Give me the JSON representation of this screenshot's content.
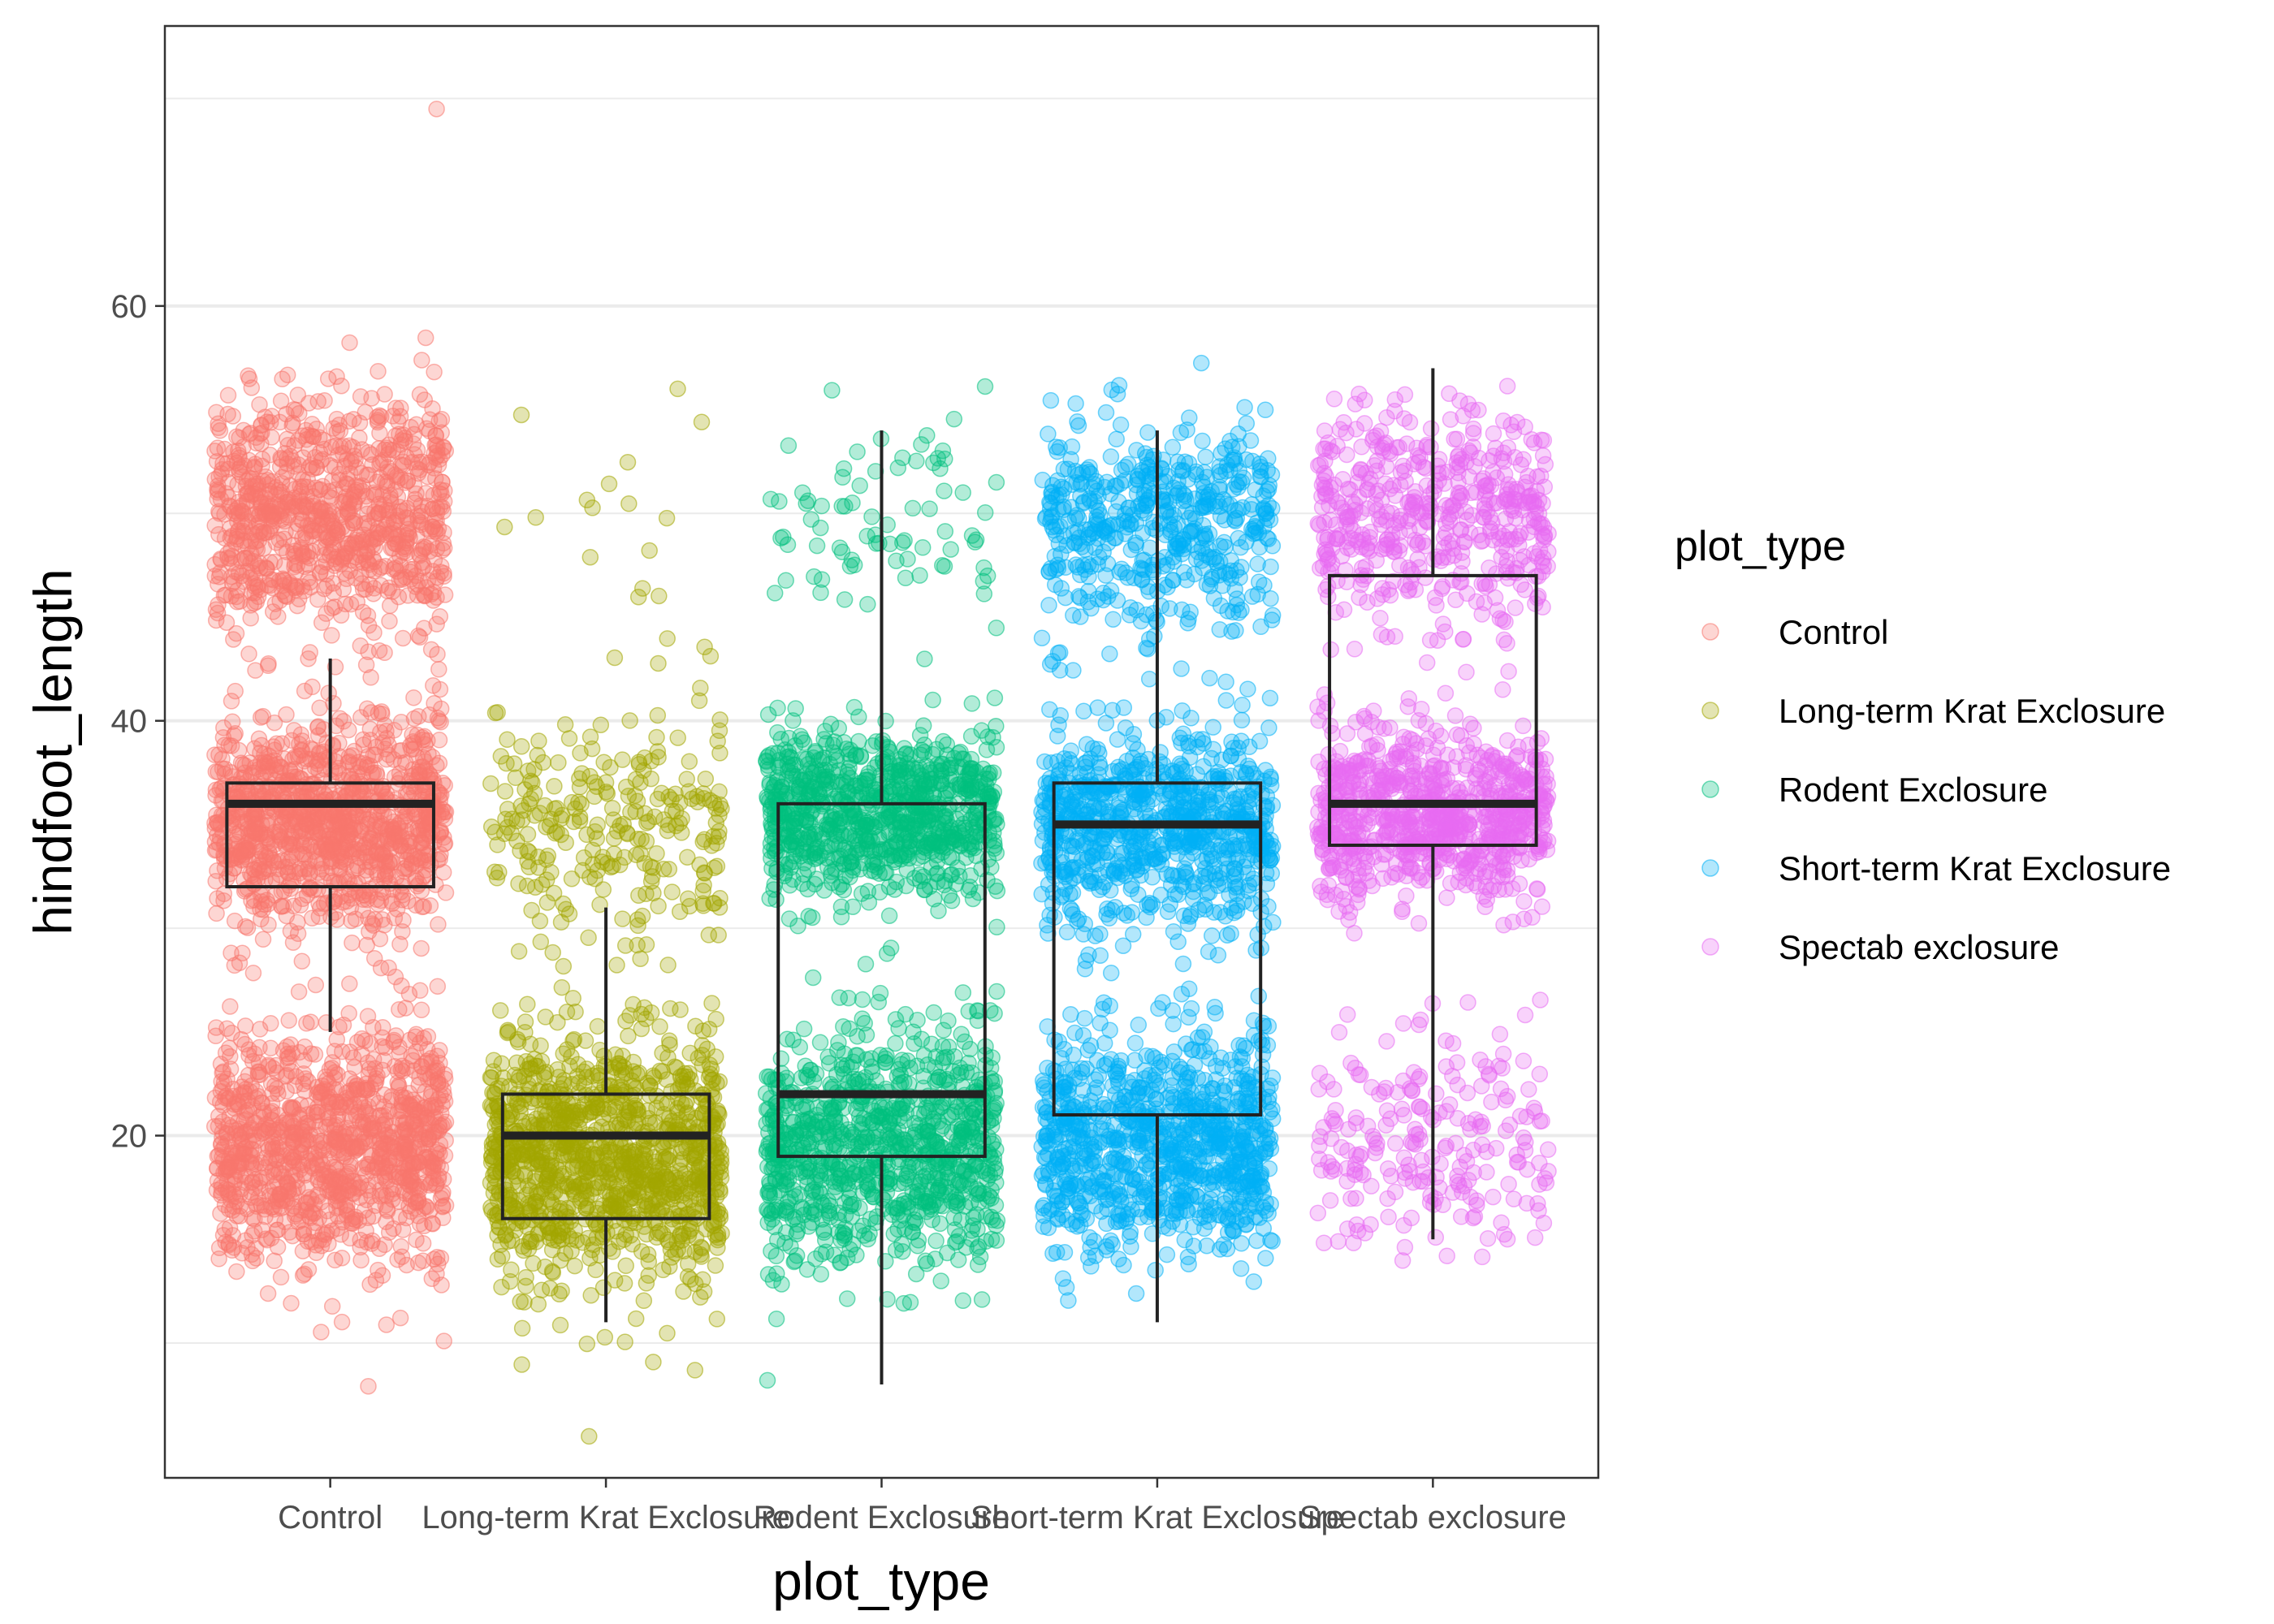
{
  "chart_data": {
    "type": "boxplot-jitter",
    "xlabel": "plot_type",
    "ylabel": "hindfoot_length",
    "ylim": [
      3.5,
      73.5
    ],
    "yticks": [
      20,
      40,
      60
    ],
    "ytick_labels": [
      "20",
      "40",
      "60"
    ],
    "categories": [
      "Control",
      "Long-term Krat Exclosure",
      "Rodent Exclosure",
      "Short-term Krat Exclosure",
      "Spectab exclosure"
    ],
    "colors": [
      "#F8766D",
      "#A3A500",
      "#00BF7D",
      "#00B0F6",
      "#E76BF3"
    ],
    "grid": true,
    "legend": {
      "title": "plot_type",
      "placement": "right",
      "entries": [
        "Control",
        "Long-term Krat Exclosure",
        "Rodent Exclosure",
        "Short-term Krat Exclosure",
        "Spectab exclosure"
      ]
    },
    "boxes": [
      {
        "category": "Control",
        "min": 25,
        "q1": 32,
        "median": 36,
        "q3": 37,
        "max": 43
      },
      {
        "category": "Long-term Krat Exclosure",
        "min": 11,
        "q1": 16,
        "median": 20,
        "q3": 22,
        "max": 31
      },
      {
        "category": "Rodent Exclosure",
        "min": 8,
        "q1": 19,
        "median": 22,
        "q3": 36,
        "max": 54
      },
      {
        "category": "Short-term Krat Exclosure",
        "min": 11,
        "q1": 21,
        "median": 35,
        "q3": 37,
        "max": 54
      },
      {
        "category": "Spectab exclosure",
        "min": 15,
        "q1": 34,
        "median": 36,
        "q3": 47,
        "max": 57
      }
    ],
    "clusters": [
      {
        "category": "Control",
        "center": 50,
        "spread": 2.8,
        "count": 900
      },
      {
        "category": "Control",
        "center": 35,
        "spread": 2.5,
        "count": 1100
      },
      {
        "category": "Control",
        "center": 19.5,
        "spread": 2.8,
        "count": 1100
      },
      {
        "category": "Long-term Krat Exclosure",
        "center": 50,
        "spread": 3,
        "count": 18
      },
      {
        "category": "Long-term Krat Exclosure",
        "center": 34.5,
        "spread": 3,
        "count": 260
      },
      {
        "category": "Long-term Krat Exclosure",
        "center": 19,
        "spread": 3,
        "count": 1100
      },
      {
        "category": "Rodent Exclosure",
        "center": 50,
        "spread": 2.5,
        "count": 80
      },
      {
        "category": "Rodent Exclosure",
        "center": 35.5,
        "spread": 2,
        "count": 850
      },
      {
        "category": "Rodent Exclosure",
        "center": 19.5,
        "spread": 2.8,
        "count": 900
      },
      {
        "category": "Short-term Krat Exclosure",
        "center": 49.5,
        "spread": 2.6,
        "count": 500
      },
      {
        "category": "Short-term Krat Exclosure",
        "center": 35,
        "spread": 2.4,
        "count": 800
      },
      {
        "category": "Short-term Krat Exclosure",
        "center": 19.5,
        "spread": 2.8,
        "count": 900
      },
      {
        "category": "Spectab exclosure",
        "center": 50,
        "spread": 2.6,
        "count": 500
      },
      {
        "category": "Spectab exclosure",
        "center": 35.5,
        "spread": 2,
        "count": 800
      },
      {
        "category": "Spectab exclosure",
        "center": 19.5,
        "spread": 2.8,
        "count": 220
      }
    ],
    "outliers": [
      {
        "category": "Control",
        "y": 69.5
      },
      {
        "category": "Long-term Krat Exclosure",
        "y": 5.5
      },
      {
        "category": "Rodent Exclosure",
        "y": 8.2
      }
    ]
  }
}
